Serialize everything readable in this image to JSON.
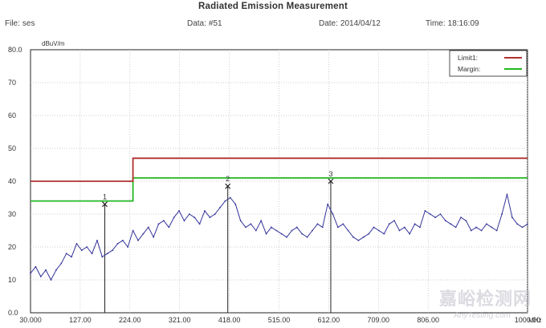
{
  "header": {
    "title": "Radiated Emission Measurement",
    "file_label": "File:",
    "file_value": "ses",
    "data_label": "Data:",
    "data_value": "#51",
    "date_label": "Date:",
    "date_value": "2014/04/12",
    "time_label": "Time:",
    "time_value": "18:16:09"
  },
  "watermark": {
    "text": "嘉峪检测网",
    "sub": "AnyTesting.com"
  },
  "chart_data": {
    "type": "line",
    "title": "Radiated Emission Measurement",
    "ylabel": "dBuV/m",
    "xlabel": "MHz",
    "xlim": [
      30,
      1000
    ],
    "ylim": [
      0,
      80
    ],
    "x_ticks": [
      "30.000",
      "127.00",
      "224.00",
      "321.00",
      "418.00",
      "515.00",
      "612.00",
      "709.00",
      "806.00",
      "1000.00"
    ],
    "x_tick_values": [
      30,
      127,
      224,
      321,
      418,
      515,
      612,
      709,
      806,
      1000
    ],
    "y_ticks": [
      "80.0",
      "70",
      "60",
      "50",
      "40",
      "30",
      "20",
      "10",
      "0.0"
    ],
    "y_tick_values": [
      80,
      70,
      60,
      50,
      40,
      30,
      20,
      10,
      0
    ],
    "grid": true,
    "legend_position": "top-right",
    "colors": {
      "limit": "#b03030",
      "margin": "#22b822",
      "trace": "#33339a",
      "marker": "#222222"
    },
    "series": [
      {
        "name": "Limit1:",
        "step_x": [
          30,
          230,
          230,
          1000
        ],
        "step_y": [
          40,
          40,
          47,
          47
        ]
      },
      {
        "name": "Margin:",
        "step_x": [
          30,
          230,
          230,
          1000
        ],
        "step_y": [
          34,
          34,
          41,
          41
        ]
      },
      {
        "name": "",
        "x": [
          30,
          40,
          50,
          60,
          70,
          80,
          90,
          100,
          110,
          120,
          130,
          140,
          150,
          160,
          170,
          180,
          190,
          200,
          210,
          220,
          230,
          240,
          250,
          260,
          270,
          280,
          290,
          300,
          310,
          320,
          330,
          340,
          350,
          360,
          370,
          380,
          390,
          400,
          410,
          420,
          430,
          440,
          450,
          460,
          470,
          480,
          490,
          500,
          510,
          520,
          530,
          540,
          550,
          560,
          570,
          580,
          590,
          600,
          610,
          620,
          630,
          640,
          650,
          660,
          670,
          680,
          690,
          700,
          710,
          720,
          730,
          740,
          750,
          760,
          770,
          780,
          790,
          800,
          810,
          820,
          830,
          840,
          850,
          860,
          870,
          880,
          890,
          900,
          910,
          920,
          930,
          940,
          950,
          960,
          970,
          980,
          990,
          1000
        ],
        "y": [
          12,
          14,
          11,
          13,
          10,
          13,
          15,
          18,
          17,
          21,
          19,
          20,
          18,
          22,
          17,
          18,
          19,
          21,
          22,
          20,
          25,
          22,
          24,
          26,
          23,
          27,
          28,
          26,
          29,
          31,
          28,
          30,
          29,
          27,
          31,
          29,
          30,
          32,
          34,
          35,
          33,
          28,
          26,
          27,
          25,
          28,
          24,
          26,
          25,
          24,
          23,
          25,
          26,
          24,
          23,
          25,
          27,
          26,
          33,
          30,
          26,
          27,
          25,
          23,
          22,
          23,
          24,
          26,
          25,
          24,
          27,
          28,
          25,
          26,
          24,
          27,
          26,
          31,
          30,
          29,
          30,
          28,
          27,
          26,
          29,
          28,
          25,
          26,
          25,
          27,
          26,
          25,
          30,
          36,
          29,
          27,
          26,
          27
        ]
      }
    ],
    "markers": [
      {
        "label": "1",
        "x": 175,
        "y": 33
      },
      {
        "label": "2",
        "x": 415,
        "y": 38.5
      },
      {
        "label": "3",
        "x": 616,
        "y": 40
      }
    ]
  }
}
